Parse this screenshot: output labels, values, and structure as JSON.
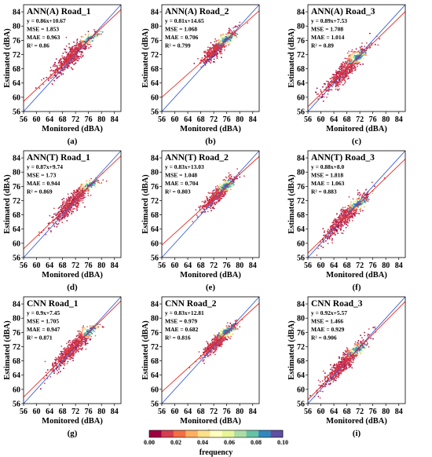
{
  "figure": {
    "colorbar": {
      "label": "frequency",
      "ticks": [
        "0.00",
        "0.02",
        "0.04",
        "0.06",
        "0.08",
        "0.10"
      ],
      "min": 0.0,
      "max": 0.1,
      "colors": [
        "#9e0142",
        "#d53e4f",
        "#f46d43",
        "#fdae61",
        "#fee08b",
        "#ffffbf",
        "#e6f598",
        "#abdda4",
        "#66c2a5",
        "#3288bd",
        "#5e4fa2"
      ]
    },
    "line_colors": {
      "identity": "#3a5fd9",
      "fit": "#e8261e"
    }
  },
  "chart_data": [
    {
      "type": "scatter",
      "panel_label": "(a)",
      "title": "ANN(A) Road_1",
      "xlabel": "Monitored (dBA)",
      "ylabel": "Estimated (dBA)",
      "xlim": [
        56,
        86
      ],
      "ylim": [
        56,
        86
      ],
      "xticks": [
        "56",
        "60",
        "64",
        "68",
        "72",
        "76",
        "80",
        "84"
      ],
      "yticks": [
        "56",
        "60",
        "64",
        "68",
        "72",
        "76",
        "80",
        "84"
      ],
      "stats": [
        "y = 0.86x+10.67",
        "MSE = 1.853",
        "MAE = 0.963",
        "R² = 0.86"
      ],
      "fit": {
        "slope": 0.86,
        "intercept": 10.67
      },
      "cluster": {
        "x_center": 71,
        "x_spread": 3.2,
        "noise": 1.4,
        "dense_x": 76.5,
        "dense_y": 76.5,
        "plateau": 78
      }
    },
    {
      "type": "scatter",
      "panel_label": "(b)",
      "title": "ANN(A) Road_2",
      "xlabel": "Monitored (dBA)",
      "ylabel": "Estimated (dBA)",
      "xlim": [
        56,
        86
      ],
      "ylim": [
        56,
        86
      ],
      "xticks": [
        "56",
        "60",
        "64",
        "68",
        "72",
        "76",
        "80",
        "84"
      ],
      "yticks": [
        "56",
        "60",
        "64",
        "68",
        "72",
        "76",
        "80",
        "84"
      ],
      "stats": [
        "y = 0.81x+14.65",
        "MSE = 1.068",
        "MAE = 0.706",
        "R² = 0.799"
      ],
      "fit": {
        "slope": 0.81,
        "intercept": 14.65
      },
      "cluster": {
        "x_center": 73.5,
        "x_spread": 2.4,
        "noise": 1.0,
        "dense_x": 76,
        "dense_y": 76.3,
        "plateau": null
      }
    },
    {
      "type": "scatter",
      "panel_label": "(c)",
      "title": "ANN(A) Road_3",
      "xlabel": "Monitored (dBA)",
      "ylabel": "Estimated (dBA)",
      "xlim": [
        56,
        86
      ],
      "ylim": [
        56,
        86
      ],
      "xticks": [
        "56",
        "60",
        "64",
        "68",
        "72",
        "76",
        "80",
        "84"
      ],
      "yticks": [
        "56",
        "60",
        "64",
        "68",
        "72",
        "76",
        "80",
        "84"
      ],
      "stats": [
        "y = 0.89x+7.53",
        "MSE = 1.708",
        "MAE = 1.014",
        "R² = 0.89"
      ],
      "fit": {
        "slope": 0.89,
        "intercept": 7.53
      },
      "cluster": {
        "x_center": 67.5,
        "x_spread": 3.4,
        "noise": 1.3,
        "dense_x": 71.5,
        "dense_y": 71.2,
        "plateau": null
      }
    },
    {
      "type": "scatter",
      "panel_label": "(d)",
      "title": "ANN(T) Road_1",
      "xlabel": "Monitored (dBA)",
      "ylabel": "Estimated (dBA)",
      "xlim": [
        56,
        86
      ],
      "ylim": [
        56,
        86
      ],
      "xticks": [
        "56",
        "60",
        "64",
        "68",
        "72",
        "76",
        "80",
        "84"
      ],
      "yticks": [
        "56",
        "60",
        "64",
        "68",
        "72",
        "76",
        "80",
        "84"
      ],
      "stats": [
        "y = 0.87x+9.74",
        "MSE = 1.73",
        "MAE = 0.944",
        "R² = 0.869"
      ],
      "fit": {
        "slope": 0.87,
        "intercept": 9.74
      },
      "cluster": {
        "x_center": 71,
        "x_spread": 3.2,
        "noise": 1.3,
        "dense_x": 76.5,
        "dense_y": 76.4,
        "plateau": 77.5
      }
    },
    {
      "type": "scatter",
      "panel_label": "(e)",
      "title": "ANN(T) Road_2",
      "xlabel": "Monitored (dBA)",
      "ylabel": "Estimated (dBA)",
      "xlim": [
        56,
        86
      ],
      "ylim": [
        56,
        86
      ],
      "xticks": [
        "56",
        "60",
        "64",
        "68",
        "72",
        "76",
        "80",
        "84"
      ],
      "yticks": [
        "56",
        "60",
        "64",
        "68",
        "72",
        "76",
        "80",
        "84"
      ],
      "stats": [
        "y = 0.83x+13.03",
        "MSE = 1.048",
        "MAE = 0.704",
        "R² = 0.803"
      ],
      "fit": {
        "slope": 0.83,
        "intercept": 13.03
      },
      "cluster": {
        "x_center": 73.5,
        "x_spread": 2.4,
        "noise": 1.0,
        "dense_x": 76,
        "dense_y": 76.2,
        "plateau": null
      }
    },
    {
      "type": "scatter",
      "panel_label": "(f)",
      "title": "ANN(T) Road_3",
      "xlabel": "Monitored (dBA)",
      "ylabel": "Estimated (dBA)",
      "xlim": [
        56,
        86
      ],
      "ylim": [
        56,
        86
      ],
      "xticks": [
        "56",
        "60",
        "64",
        "68",
        "72",
        "76",
        "80",
        "84"
      ],
      "yticks": [
        "56",
        "60",
        "64",
        "68",
        "72",
        "76",
        "80",
        "84"
      ],
      "stats": [
        "y = 0.88x+8.0",
        "MSE = 1.818",
        "MAE = 1.063",
        "R² = 0.883"
      ],
      "fit": {
        "slope": 0.88,
        "intercept": 8.0
      },
      "cluster": {
        "x_center": 67.5,
        "x_spread": 3.4,
        "noise": 1.3,
        "dense_x": 71.5,
        "dense_y": 71.0,
        "plateau": null
      }
    },
    {
      "type": "scatter",
      "panel_label": "(g)",
      "title": "CNN Road_1",
      "xlabel": "Monitored (dBA)",
      "ylabel": "Estimated (dBA)",
      "xlim": [
        56,
        86
      ],
      "ylim": [
        56,
        86
      ],
      "xticks": [
        "56",
        "60",
        "64",
        "68",
        "72",
        "76",
        "80",
        "84"
      ],
      "yticks": [
        "56",
        "60",
        "64",
        "68",
        "72",
        "76",
        "80",
        "84"
      ],
      "stats": [
        "y = 0.9x+7.45",
        "MSE = 1.705",
        "MAE = 0.947",
        "R² = 0.871"
      ],
      "fit": {
        "slope": 0.9,
        "intercept": 7.45
      },
      "cluster": {
        "x_center": 71,
        "x_spread": 3.2,
        "noise": 1.3,
        "dense_x": 76.5,
        "dense_y": 76.3,
        "plateau": 77.5
      }
    },
    {
      "type": "scatter",
      "panel_label": "(h)",
      "title": "CNN Road_2",
      "xlabel": "Monitored (dBA)",
      "ylabel": "Estimated (dBA)",
      "xlim": [
        56,
        86
      ],
      "ylim": [
        56,
        86
      ],
      "xticks": [
        "56",
        "60",
        "64",
        "68",
        "72",
        "76",
        "80",
        "84"
      ],
      "yticks": [
        "56",
        "60",
        "64",
        "68",
        "72",
        "76",
        "80",
        "84"
      ],
      "stats": [
        "y = 0.83x+12.81",
        "MSE = 0.979",
        "MAE = 0.682",
        "R² = 0.816"
      ],
      "fit": {
        "slope": 0.83,
        "intercept": 12.81
      },
      "cluster": {
        "x_center": 73.5,
        "x_spread": 2.4,
        "noise": 0.95,
        "dense_x": 76,
        "dense_y": 76.2,
        "plateau": null
      }
    },
    {
      "type": "scatter",
      "panel_label": "(i)",
      "title": "CNN Road_3",
      "xlabel": "Monitored (dBA)",
      "ylabel": "Estimated (dBA)",
      "xlim": [
        56,
        86
      ],
      "ylim": [
        56,
        86
      ],
      "xticks": [
        "56",
        "60",
        "64",
        "68",
        "72",
        "76",
        "80",
        "84"
      ],
      "yticks": [
        "56",
        "60",
        "64",
        "68",
        "72",
        "76",
        "80",
        "84"
      ],
      "stats": [
        "y = 0.92x+5.57",
        "MSE = 1.466",
        "MAE = 0.929",
        "R² = 0.906"
      ],
      "fit": {
        "slope": 0.92,
        "intercept": 5.57
      },
      "cluster": {
        "x_center": 67.5,
        "x_spread": 3.4,
        "noise": 1.2,
        "dense_x": 71.5,
        "dense_y": 71.2,
        "plateau": null
      }
    }
  ]
}
